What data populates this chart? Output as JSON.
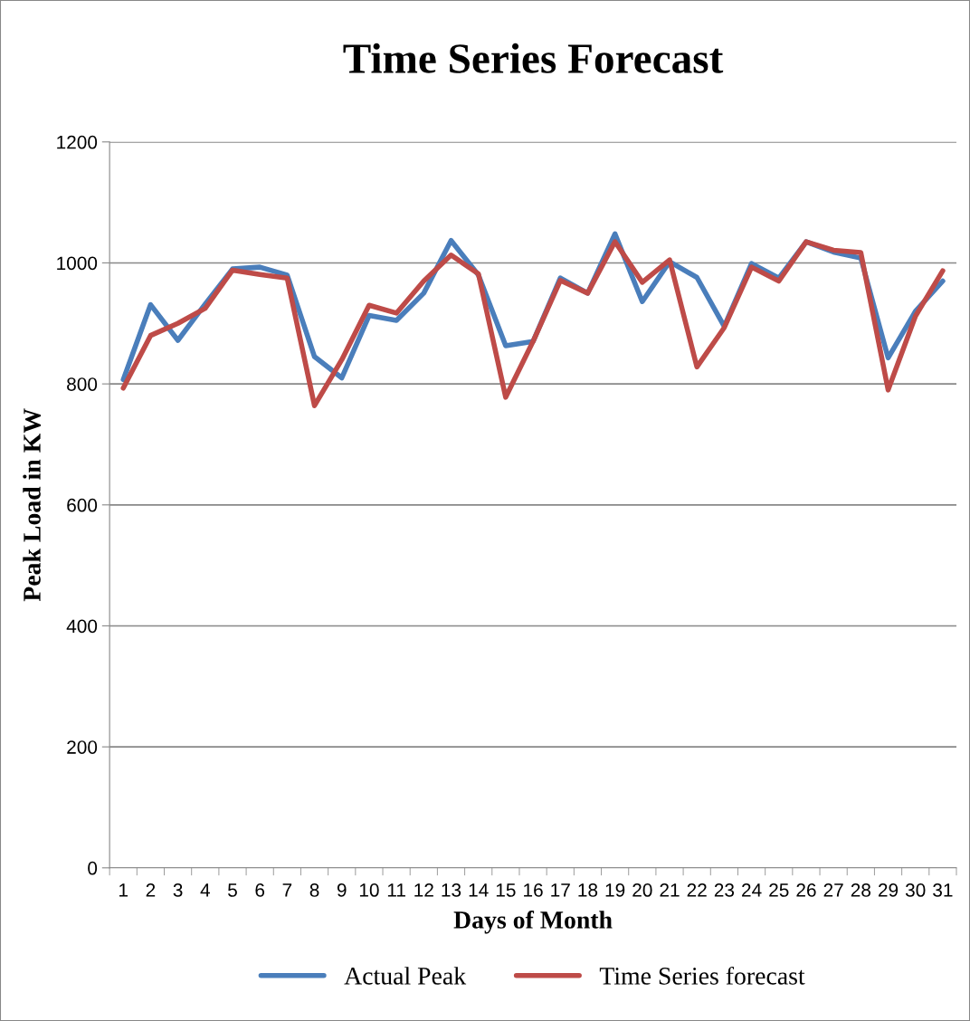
{
  "chart_data": {
    "type": "line",
    "title": "Time Series Forecast",
    "xlabel": "Days of Month",
    "ylabel": "Peak Load in KW",
    "categories": [
      "1",
      "2",
      "3",
      "4",
      "5",
      "6",
      "7",
      "8",
      "9",
      "10",
      "11",
      "12",
      "13",
      "14",
      "15",
      "16",
      "17",
      "18",
      "19",
      "20",
      "21",
      "22",
      "23",
      "24",
      "25",
      "26",
      "27",
      "28",
      "29",
      "30",
      "31"
    ],
    "series": [
      {
        "name": "Actual Peak",
        "color": "#4a7ebb",
        "values": [
          807,
          931,
          872,
          932,
          990,
          993,
          980,
          845,
          810,
          913,
          905,
          950,
          1037,
          980,
          863,
          870,
          975,
          950,
          1048,
          936,
          1002,
          976,
          895,
          999,
          975,
          1035,
          1018,
          1008,
          843,
          920,
          970
        ]
      },
      {
        "name": "Time Series forecast",
        "color": "#be4b48",
        "values": [
          793,
          880,
          900,
          925,
          988,
          981,
          975,
          764,
          840,
          930,
          917,
          970,
          1013,
          982,
          778,
          870,
          971,
          950,
          1035,
          968,
          1005,
          828,
          893,
          993,
          970,
          1035,
          1021,
          1017,
          790,
          912,
          987
        ]
      }
    ],
    "ylim": [
      0,
      1200
    ],
    "yticks": [
      0,
      200,
      400,
      600,
      800,
      1000,
      1200
    ],
    "grid": "y",
    "legend": "bottom",
    "marker": "none",
    "line_style": "solid"
  }
}
